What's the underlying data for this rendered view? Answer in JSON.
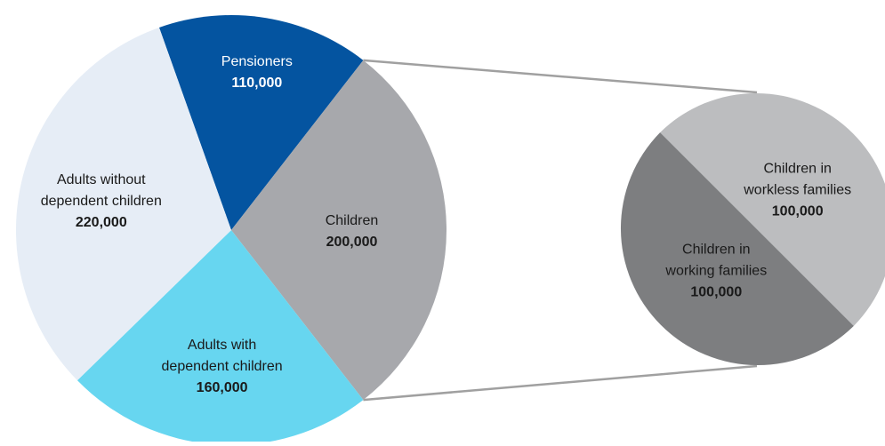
{
  "chart_data": [
    {
      "type": "pie",
      "title": "",
      "slices": [
        {
          "label_lines": [
            "Pensioners"
          ],
          "label": "Pensioners",
          "value": 110000,
          "value_text": "110,000",
          "color": "#0454A0",
          "text_color": "#ffffff"
        },
        {
          "label_lines": [
            "Children"
          ],
          "label": "Children",
          "value": 200000,
          "value_text": "200,000",
          "color": "#A7A8AC",
          "text_color": "#1a1a1a"
        },
        {
          "label_lines": [
            "Adults with",
            "dependent children"
          ],
          "label": "Adults with dependent children",
          "value": 160000,
          "value_text": "160,000",
          "color": "#67D6F0",
          "text_color": "#1a1a1a"
        },
        {
          "label_lines": [
            "Adults without",
            "dependent children"
          ],
          "label": "Adults without dependent children",
          "value": 220000,
          "value_text": "220,000",
          "color": "#E6EDF6",
          "text_color": "#1a1a1a"
        }
      ]
    },
    {
      "type": "pie",
      "title": "",
      "breakdown_of": "Children",
      "slices": [
        {
          "label_lines": [
            "Children in",
            "workless families"
          ],
          "label": "Children in workless families",
          "value": 100000,
          "value_text": "100,000",
          "color": "#BCBDBF",
          "text_color": "#1a1a1a"
        },
        {
          "label_lines": [
            "Children in",
            "working families"
          ],
          "label": "Children in working families",
          "value": 100000,
          "value_text": "100,000",
          "color": "#7D7E80",
          "text_color": "#1a1a1a"
        }
      ]
    }
  ]
}
